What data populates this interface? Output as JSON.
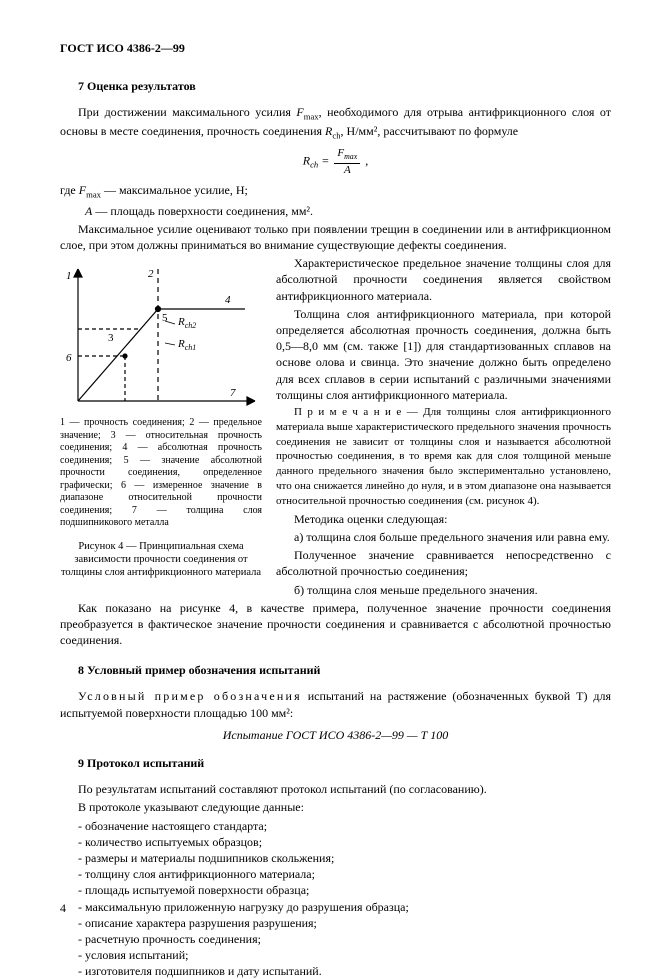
{
  "header": "ГОСТ ИСО 4386-2—99",
  "s7": {
    "title": "7  Оценка результатов",
    "p1a": "При достижении максимального усилия ",
    "p1_f": "F",
    "p1_sub": "max",
    "p1b": ", необходимого для отрыва антифрикционного слоя от основы в месте соединения, прочность соединения ",
    "p1_r": "R",
    "p1_rsub": "ch",
    "p1c": ", Н/мм², рассчитывают по формуле",
    "formula_Rch": "R",
    "formula_Rch_sub": "ch",
    "formula_eq": " = ",
    "formula_Fmax": "F",
    "formula_Fmax_sub": "max",
    "formula_A": "A",
    "where_pre": "где ",
    "where1_sym": "F",
    "where1_sub": "max",
    "where1": " —  максимальное усилие, Н;",
    "where2_sym": "A",
    "where2": " —  площадь поверхности соединения, мм².",
    "p2": "Максимальное усилие оценивают только при появлении трещин в соединении или в антифрикционном слое, при этом должны приниматься во внимание существующие дефекты соединения.",
    "p3": "Характеристическое предельное значение толщины слоя для абсолютной прочности соединения является свойством антифрикционного материала.",
    "p4": "Толщина слоя антифрикционного материала, при которой определяется абсолютная прочность соединения, должна быть 0,5—8,0 мм (см. также [1]) для стандартизованных сплавов на основе олова и свинца. Это значение должно быть определено для всех сплавов в серии испытаний с различными значениями толщины слоя антифрикционного материала.",
    "note": "П р и м е ч а н и е — Для толщины слоя антифрикционного материала выше характеристического предельного значения прочность соединения не зависит от толщины слоя и называется абсолютной прочностью соединения, в то время как для слоя толщиной меньше данного предельного значения было экспериментально установлено, что она снижается линейно до нуля, и в этом диапазоне она называется относительной прочностью соединения (см. рисунок 4).",
    "p5": "Методика оценки следующая:",
    "p6": "a) толщина слоя больше предельного значения или равна ему.",
    "p7": "Полученное значение сравнивается непосредственно с абсолютной прочностью соединения;",
    "p8": "б) толщина слоя меньше предельного значения.",
    "p9": "Как показано на рисунке 4, в качестве примера, полученное значение прочности соединения преобразуется в фактическое значение прочности соединения и сравнивается с абсолютной прочностью соединения."
  },
  "fig": {
    "labels": {
      "l1": "1",
      "l2": "2",
      "l3": "3",
      "l4": "4",
      "l5": "5",
      "l6": "6",
      "l7": "7",
      "rch2": "R",
      "rch2sub": "ch2",
      "rch1": "R",
      "rch1sub": "ch1"
    },
    "caption": "1 — прочность соединения; 2 — предельное значение; 3 — относительная прочность соединения; 4 — абсолютная прочность соединения; 5 — значение абсолютной прочности соединения, определенное графически; 6 — измеренное значение в диапазоне относительной прочности соединения; 7 — толщина слоя подшипникового металла",
    "title": "Рисунок 4 — Принципиальная схема зависимости  прочности соединения от толщины слоя антифрикционного материала",
    "style": {
      "stroke": "#000000",
      "stroke_width": 1.2,
      "font_size": 11,
      "font_family": "Times New Roman, serif",
      "xlim": [
        0,
        200
      ],
      "ylim": [
        0,
        150
      ],
      "origin_x": 18,
      "origin_y": 140,
      "axis_end_x": 195,
      "axis_top_y": 8,
      "vertical_dashed_x": 98,
      "horiz_level_y": 48,
      "diag_start": [
        18,
        140
      ],
      "diag_end": [
        98,
        48
      ],
      "point5": [
        98,
        48
      ],
      "point5_line_to": [
        185,
        48
      ],
      "dashed_low_y": 95,
      "dashed_low_x_end": 65,
      "dashed_mid_y": 68
    }
  },
  "s8": {
    "title": "8  Условный пример обозначения испытаний",
    "p1_spaced": "Условный пример обозначения",
    "p1_rest": " испытаний на растяжение (обозначенных буквой Т) для испытуемой поверхности площадью 100 мм²:",
    "example": "Испытание ГОСТ ИСО 4386-2—99 — Т 100"
  },
  "s9": {
    "title": "9  Протокол испытаний",
    "p1": "По результатам испытаний составляют протокол испытаний (по согласованию).",
    "p2": "В протоколе указывают следующие данные:",
    "items": [
      "обозначение настоящего стандарта;",
      "количество испытуемых образцов;",
      "размеры и материалы подшипников скольжения;",
      "толщину слоя антифрикционного материала;",
      "площадь испытуемой поверхности образца;",
      "максимальную приложенную нагрузку до разрушения образца;",
      "описание характера разрушения разрушения;",
      "расчетную прочность соединения;",
      "условия испытаний;",
      "изготовителя подшипников и дату испытаний."
    ]
  },
  "pagenum": "4"
}
